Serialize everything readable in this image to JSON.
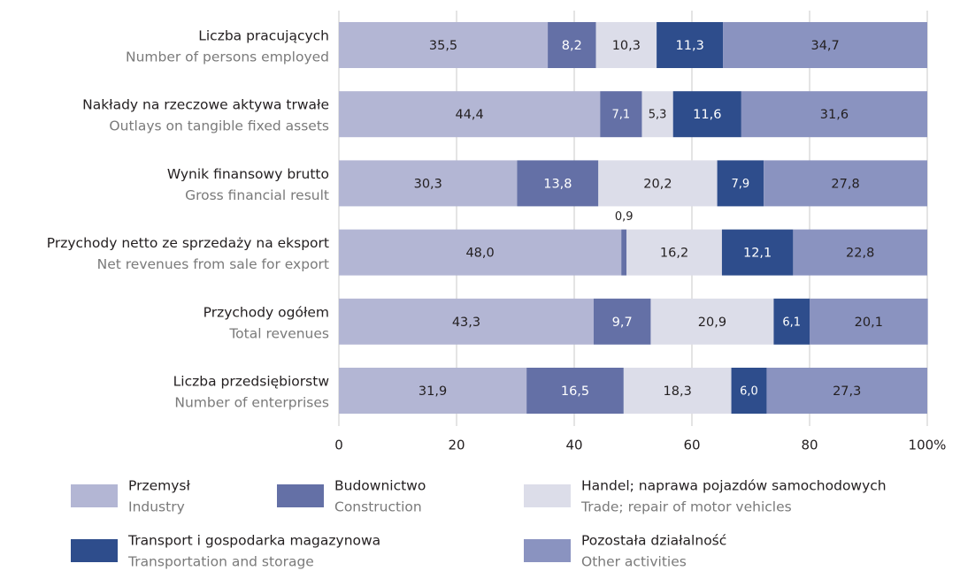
{
  "chart_data": {
    "type": "stacked-bar-horizontal",
    "categories": [
      "Liczba pracujących",
      "Nakłady na rzeczowe aktywa trwałe",
      "Wynik finansowy brutto",
      "Przychody netto ze sprzedaży na eksport",
      "Przychody ogółem",
      "Liczba przedsiębiorstw"
    ],
    "categories_en": [
      "Number of persons employed",
      "Outlays on tangible fixed assets",
      "Gross financial result",
      "Net revenues from sale for export",
      "Total revenues",
      "Number of enterprises"
    ],
    "series": [
      {
        "name": "Przemysł",
        "name_en": "Industry",
        "color": "#b3b6d4",
        "values": [
          35.5,
          44.4,
          30.3,
          48.0,
          43.3,
          31.9
        ],
        "value_labels": [
          "35,5",
          "44,4",
          "30,3",
          "48,0",
          "43,3",
          "31,9"
        ]
      },
      {
        "name": "Budownictwo",
        "name_en": "Construction",
        "color": "#6470a6",
        "values": [
          8.2,
          7.1,
          13.8,
          0.9,
          9.7,
          16.5
        ],
        "value_labels": [
          "8,2",
          "7,1",
          "13,8",
          "0,9",
          "9,7",
          "16,5"
        ]
      },
      {
        "name": "Handel; naprawa pojazdów samochodowych",
        "name_en": "Trade; repair of motor vehicles",
        "color": "#dcdde9",
        "values": [
          10.3,
          5.3,
          20.2,
          16.2,
          20.9,
          18.3
        ],
        "value_labels": [
          "10,3",
          "5,3",
          "20,2",
          "16,2",
          "20,9",
          "18,3"
        ]
      },
      {
        "name": "Transport i gospodarka magazynowa",
        "name_en": "Transportation and storage",
        "color": "#2e4d8c",
        "values": [
          11.3,
          11.6,
          7.9,
          12.1,
          6.1,
          6.0
        ],
        "value_labels": [
          "11,3",
          "11,6",
          "7,9",
          "12,1",
          "6,1",
          "6,0"
        ]
      },
      {
        "name": "Pozostała działalność",
        "name_en": "Other activities",
        "color": "#8a93c0",
        "values": [
          34.7,
          31.6,
          27.8,
          22.8,
          20.1,
          27.3
        ],
        "value_labels": [
          "34,7",
          "31,6",
          "27,8",
          "22,8",
          "20,1",
          "27,3"
        ]
      }
    ],
    "xlim": [
      0,
      100
    ],
    "xticks": [
      0,
      20,
      40,
      60,
      80,
      {
        "value": 100,
        "label": "100%"
      }
    ],
    "grid": true
  }
}
